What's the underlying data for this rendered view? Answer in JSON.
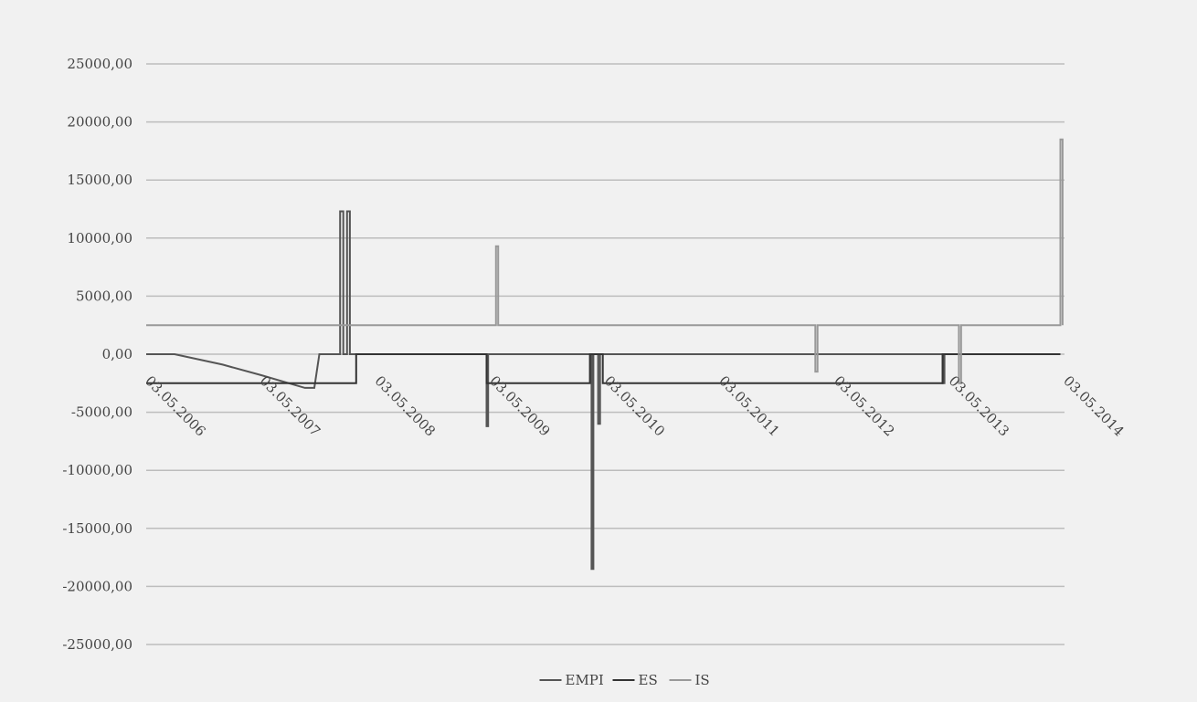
{
  "chart_data": {
    "type": "line",
    "title": "",
    "xlabel": "",
    "ylabel": "",
    "x_axis_type": "date",
    "x_range": [
      "2006-05-03",
      "2014-05-03"
    ],
    "ylim": [
      -25000,
      25000
    ],
    "y_ticks": [
      25000,
      20000,
      15000,
      10000,
      5000,
      0,
      -5000,
      -10000,
      -15000,
      -20000,
      -25000
    ],
    "y_tick_labels": [
      "25000,00",
      "20000,00",
      "15000,00",
      "10000,00",
      "5000,00",
      "0,00",
      "-5000,00",
      "-10000,00",
      "-15000,00",
      "-20000,00",
      "-25000,00"
    ],
    "x_ticks": [
      "2006-05-03",
      "2007-05-03",
      "2008-05-03",
      "2009-05-03",
      "2010-05-03",
      "2011-05-03",
      "2012-05-03",
      "2013-05-03",
      "2014-05-03"
    ],
    "x_tick_labels": [
      "03.05.2006",
      "03.05.2007",
      "03.05.2008",
      "03.05.2009",
      "03.05.2010",
      "03.05.2011",
      "03.05.2012",
      "03.05.2013",
      "03.05.2014"
    ],
    "grid": true,
    "legend_position": "bottom",
    "series": [
      {
        "name": "EMPI",
        "color": "#555555",
        "points": [
          [
            "2006-05-03",
            0
          ],
          [
            "2006-08-01",
            0
          ],
          [
            "2007-01-01",
            -900
          ],
          [
            "2007-05-03",
            -1800
          ],
          [
            "2007-09-20",
            -2900
          ],
          [
            "2007-10-20",
            -2900
          ],
          [
            "2007-11-05",
            0
          ],
          [
            "2008-01-10",
            0
          ],
          [
            "2008-01-10",
            12300
          ],
          [
            "2008-01-20",
            12300
          ],
          [
            "2008-01-20",
            0
          ],
          [
            "2008-02-01",
            0
          ],
          [
            "2008-02-01",
            12300
          ],
          [
            "2008-02-10",
            12300
          ],
          [
            "2008-02-10",
            0
          ],
          [
            "2009-04-20",
            0
          ],
          [
            "2009-04-20",
            -6200
          ],
          [
            "2009-04-25",
            -6200
          ],
          [
            "2009-04-25",
            0
          ],
          [
            "2010-03-20",
            0
          ],
          [
            "2010-03-20",
            -18500
          ],
          [
            "2010-03-26",
            -18500
          ],
          [
            "2010-03-26",
            0
          ],
          [
            "2010-04-10",
            0
          ],
          [
            "2010-04-10",
            -6000
          ],
          [
            "2010-04-16",
            -6000
          ],
          [
            "2010-04-16",
            0
          ],
          [
            "2013-04-10",
            0
          ],
          [
            "2013-04-10",
            -2500
          ],
          [
            "2013-04-16",
            -2500
          ],
          [
            "2013-04-16",
            0
          ],
          [
            "2014-04-20",
            0
          ]
        ]
      },
      {
        "name": "ES",
        "color": "#333333",
        "points": [
          [
            "2006-05-03",
            -2500
          ],
          [
            "2008-03-01",
            -2500
          ],
          [
            "2008-03-01",
            0
          ],
          [
            "2009-04-20",
            0
          ],
          [
            "2009-04-20",
            -2500
          ],
          [
            "2010-03-15",
            -2500
          ],
          [
            "2010-03-15",
            0
          ],
          [
            "2010-04-25",
            0
          ],
          [
            "2010-04-25",
            -2500
          ],
          [
            "2013-04-10",
            -2500
          ],
          [
            "2013-04-10",
            0
          ],
          [
            "2014-04-20",
            0
          ]
        ]
      },
      {
        "name": "IS",
        "color": "#999999",
        "points": [
          [
            "2006-05-03",
            2500
          ],
          [
            "2009-05-20",
            2500
          ],
          [
            "2009-05-20",
            9300
          ],
          [
            "2009-05-27",
            9300
          ],
          [
            "2009-05-27",
            2500
          ],
          [
            "2012-03-01",
            2500
          ],
          [
            "2012-03-01",
            -1500
          ],
          [
            "2012-03-08",
            -1500
          ],
          [
            "2012-03-08",
            2500
          ],
          [
            "2013-06-01",
            2500
          ],
          [
            "2013-06-01",
            -2500
          ],
          [
            "2013-06-08",
            -2500
          ],
          [
            "2013-06-08",
            2500
          ],
          [
            "2014-04-20",
            2500
          ],
          [
            "2014-04-20",
            18500
          ],
          [
            "2014-04-27",
            18500
          ],
          [
            "2014-04-27",
            2500
          ]
        ]
      }
    ]
  }
}
